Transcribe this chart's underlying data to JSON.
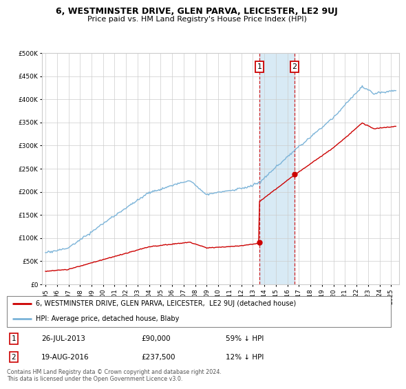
{
  "title": "6, WESTMINSTER DRIVE, GLEN PARVA, LEICESTER, LE2 9UJ",
  "subtitle": "Price paid vs. HM Land Registry's House Price Index (HPI)",
  "legend_label_red": "6, WESTMINSTER DRIVE, GLEN PARVA, LEICESTER,  LE2 9UJ (detached house)",
  "legend_label_blue": "HPI: Average price, detached house, Blaby",
  "annotation1_date": "26-JUL-2013",
  "annotation1_price": "£90,000",
  "annotation1_hpi": "59% ↓ HPI",
  "annotation2_date": "19-AUG-2016",
  "annotation2_price": "£237,500",
  "annotation2_hpi": "12% ↓ HPI",
  "footer": "Contains HM Land Registry data © Crown copyright and database right 2024.\nThis data is licensed under the Open Government Licence v3.0.",
  "ylim": [
    0,
    500000
  ],
  "yticks": [
    0,
    50000,
    100000,
    150000,
    200000,
    250000,
    300000,
    350000,
    400000,
    450000,
    500000
  ],
  "hpi_color": "#7ab3d8",
  "price_color": "#cc0000",
  "sale1_year": 2013.57,
  "sale1_price": 90000,
  "sale2_year": 2016.63,
  "sale2_price": 237500,
  "shade_color": "#d8eaf5",
  "background_color": "#ffffff",
  "grid_color": "#cccccc"
}
